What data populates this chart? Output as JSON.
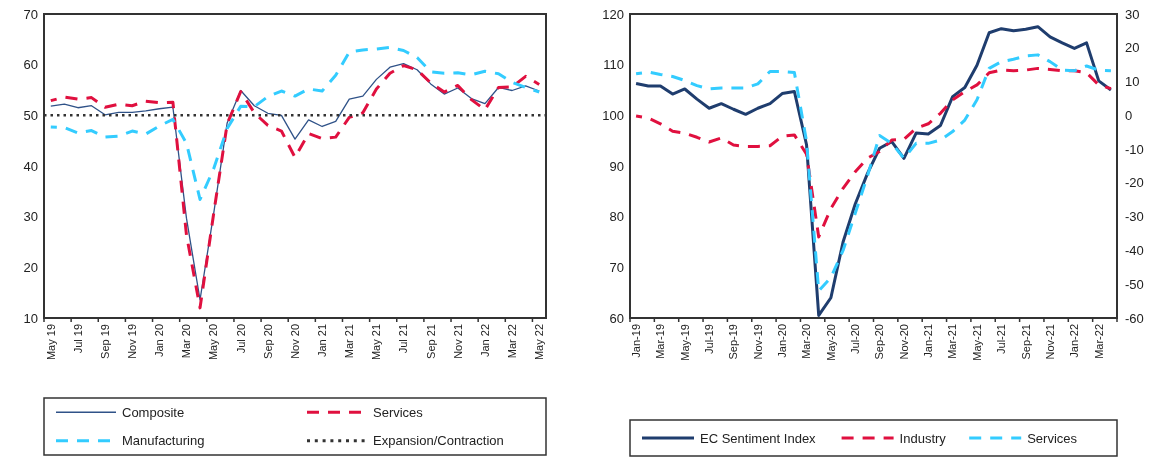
{
  "chart_data": [
    {
      "type": "line",
      "categories": [
        "May 19",
        null,
        "Jul 19",
        null,
        "Sep 19",
        null,
        "Nov 19",
        null,
        "Jan 20",
        null,
        "Mar 20",
        null,
        "May 20",
        null,
        "Jul 20",
        null,
        "Sep 20",
        null,
        "Nov 20",
        null,
        "Jan 21",
        null,
        "Mar 21",
        null,
        "May 21",
        null,
        "Jul 21",
        null,
        "Sep 21",
        null,
        "Nov 21",
        null,
        "Jan 22",
        null,
        "Mar 22",
        null,
        "May 22"
      ],
      "series": [
        {
          "name": "Composite",
          "color": "#2f5288",
          "line_style": "solid",
          "values": [
            51.8,
            52.2,
            51.5,
            51.9,
            50.1,
            50.6,
            50.6,
            50.9,
            51.3,
            51.6,
            29.7,
            13.6,
            30.5,
            48.5,
            54.9,
            51.9,
            50.4,
            50.0,
            45.3,
            49.1,
            47.8,
            48.8,
            53.2,
            53.8,
            57.1,
            59.5,
            60.2,
            59.0,
            56.2,
            54.2,
            55.4,
            53.3,
            52.3,
            55.5,
            54.9,
            55.8,
            54.8
          ]
        },
        {
          "name": "Services",
          "color": "#e0103f",
          "line_style": "dashed",
          "values": [
            52.9,
            53.6,
            53.2,
            53.5,
            51.6,
            52.2,
            51.9,
            52.8,
            52.5,
            52.6,
            26.4,
            12.0,
            30.5,
            48.3,
            54.7,
            50.5,
            48.0,
            46.9,
            41.7,
            46.4,
            45.4,
            45.7,
            49.6,
            50.5,
            55.2,
            58.3,
            59.8,
            59.0,
            56.4,
            54.6,
            55.9,
            53.1,
            51.1,
            55.5,
            55.6,
            57.7,
            56.1
          ]
        },
        {
          "name": "Manufacturing",
          "color": "#33ccff",
          "line_style": "dashed",
          "values": [
            47.7,
            47.6,
            46.5,
            47.0,
            45.7,
            45.9,
            46.9,
            46.3,
            47.9,
            49.2,
            44.5,
            33.4,
            39.4,
            47.4,
            51.8,
            51.7,
            53.7,
            54.8,
            53.8,
            55.2,
            54.8,
            57.9,
            62.5,
            62.9,
            63.1,
            63.4,
            62.8,
            61.4,
            58.6,
            58.3,
            58.4,
            58.0,
            58.7,
            58.2,
            56.5,
            55.5,
            54.6
          ]
        }
      ],
      "ref_lines": [
        {
          "axis": "y",
          "value": 50,
          "label": "Expansion/Contraction",
          "color": "#333333",
          "line_style": "dotted"
        }
      ],
      "ylim": [
        10,
        70
      ],
      "yticks": [
        10,
        20,
        30,
        40,
        50,
        60,
        70
      ],
      "grid": false,
      "legend": "bottom"
    },
    {
      "type": "line",
      "categories": [
        "Jan-19",
        null,
        "Mar-19",
        null,
        "May-19",
        null,
        "Jul-19",
        null,
        "Sep-19",
        null,
        "Nov-19",
        null,
        "Jan-20",
        null,
        "Mar-20",
        null,
        "May-20",
        null,
        "Jul-20",
        null,
        "Sep-20",
        null,
        "Nov-20",
        null,
        "Jan-21",
        null,
        "Mar-21",
        null,
        "May-21",
        null,
        "Jul-21",
        null,
        "Sep-21",
        null,
        "Nov-21",
        null,
        "Jan-22",
        null,
        "Mar-22",
        null
      ],
      "series": [
        {
          "name": "EC Sentiment Index",
          "color": "#1f3d6e",
          "line_style": "solid",
          "values": [
            106.3,
            105.8,
            105.8,
            104.2,
            105.2,
            103.2,
            101.4,
            102.3,
            101.2,
            100.2,
            101.4,
            102.3,
            104.3,
            104.7,
            94.2,
            60.5,
            64.0,
            75.0,
            82.5,
            88.5,
            93.5,
            94.8,
            91.5,
            96.5,
            96.3,
            98.0,
            103.7,
            105.5,
            109.9,
            116.3,
            117.1,
            116.7,
            117.0,
            117.5,
            115.5,
            114.3,
            113.2,
            114.3,
            106.8,
            105.0
          ]
        },
        {
          "name": "Industry",
          "color": "#e0103f",
          "line_style": "dashed",
          "axis": "y2",
          "values": [
            -0.2,
            -0.8,
            -2.5,
            -4.7,
            -5.3,
            -6.5,
            -7.9,
            -6.7,
            -8.8,
            -9.2,
            -9.2,
            -9.0,
            -6.2,
            -5.8,
            -11.5,
            -36.0,
            -27.6,
            -21.6,
            -16.7,
            -12.7,
            -10.7,
            -7.3,
            -7.1,
            -3.8,
            -2.5,
            0.6,
            4.6,
            7.0,
            9.0,
            12.6,
            13.4,
            13.2,
            13.4,
            13.9,
            13.6,
            13.2,
            13.2,
            12.6,
            9.0,
            7.9
          ]
        },
        {
          "name": "Services",
          "color": "#33ccff",
          "line_style": "dashed",
          "axis": "y2",
          "values": [
            12.3,
            12.8,
            12.1,
            11.5,
            10.3,
            8.8,
            7.8,
            8.1,
            8.1,
            8.1,
            9.3,
            13.0,
            13.0,
            12.7,
            -7.7,
            -52.0,
            -48.0,
            -40.0,
            -29.0,
            -18.0,
            -6.0,
            -8.3,
            -12.7,
            -8.3,
            -8.3,
            -7.3,
            -4.8,
            -1.4,
            4.6,
            13.9,
            15.9,
            16.6,
            17.6,
            17.9,
            15.9,
            13.4,
            13.2,
            14.6,
            13.4,
            13.2
          ]
        }
      ],
      "ylim": [
        60,
        120
      ],
      "yticks": [
        60,
        70,
        80,
        90,
        100,
        110,
        120
      ],
      "y2lim": [
        -60,
        30
      ],
      "y2ticks": [
        -60,
        -50,
        -40,
        -30,
        -20,
        -10,
        0,
        10,
        20,
        30
      ],
      "grid": false,
      "legend": "bottom"
    }
  ]
}
